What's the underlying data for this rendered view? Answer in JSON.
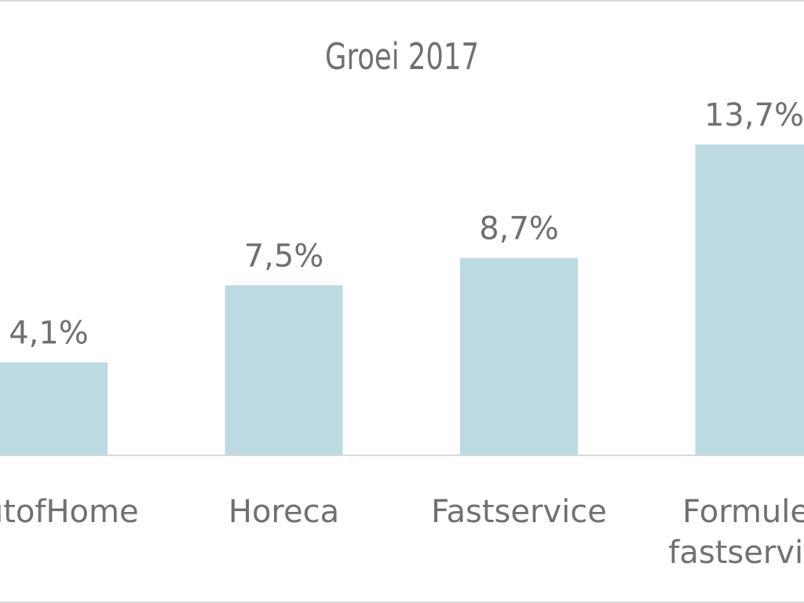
{
  "chart_data": {
    "type": "bar",
    "title": "Groei 2017",
    "categories": [
      "OutofHome",
      "Horeca",
      "Fastservice",
      "Formules fastservice"
    ],
    "category_lines": [
      [
        "OutofHome"
      ],
      [
        "Horeca"
      ],
      [
        "Fastservice"
      ],
      [
        "Formules",
        "fastservice"
      ]
    ],
    "values": [
      4.1,
      7.5,
      8.7,
      13.7
    ],
    "value_labels": [
      "4,1%",
      "7,5%",
      "8,7%",
      "13,7%"
    ],
    "unit": "%",
    "ylim": [
      0,
      16
    ],
    "grid": false,
    "legend": "none",
    "colors": {
      "bar": "#bcdae2",
      "text": "#707070",
      "axis": "#d9d9d9",
      "background": "#ffffff"
    }
  }
}
